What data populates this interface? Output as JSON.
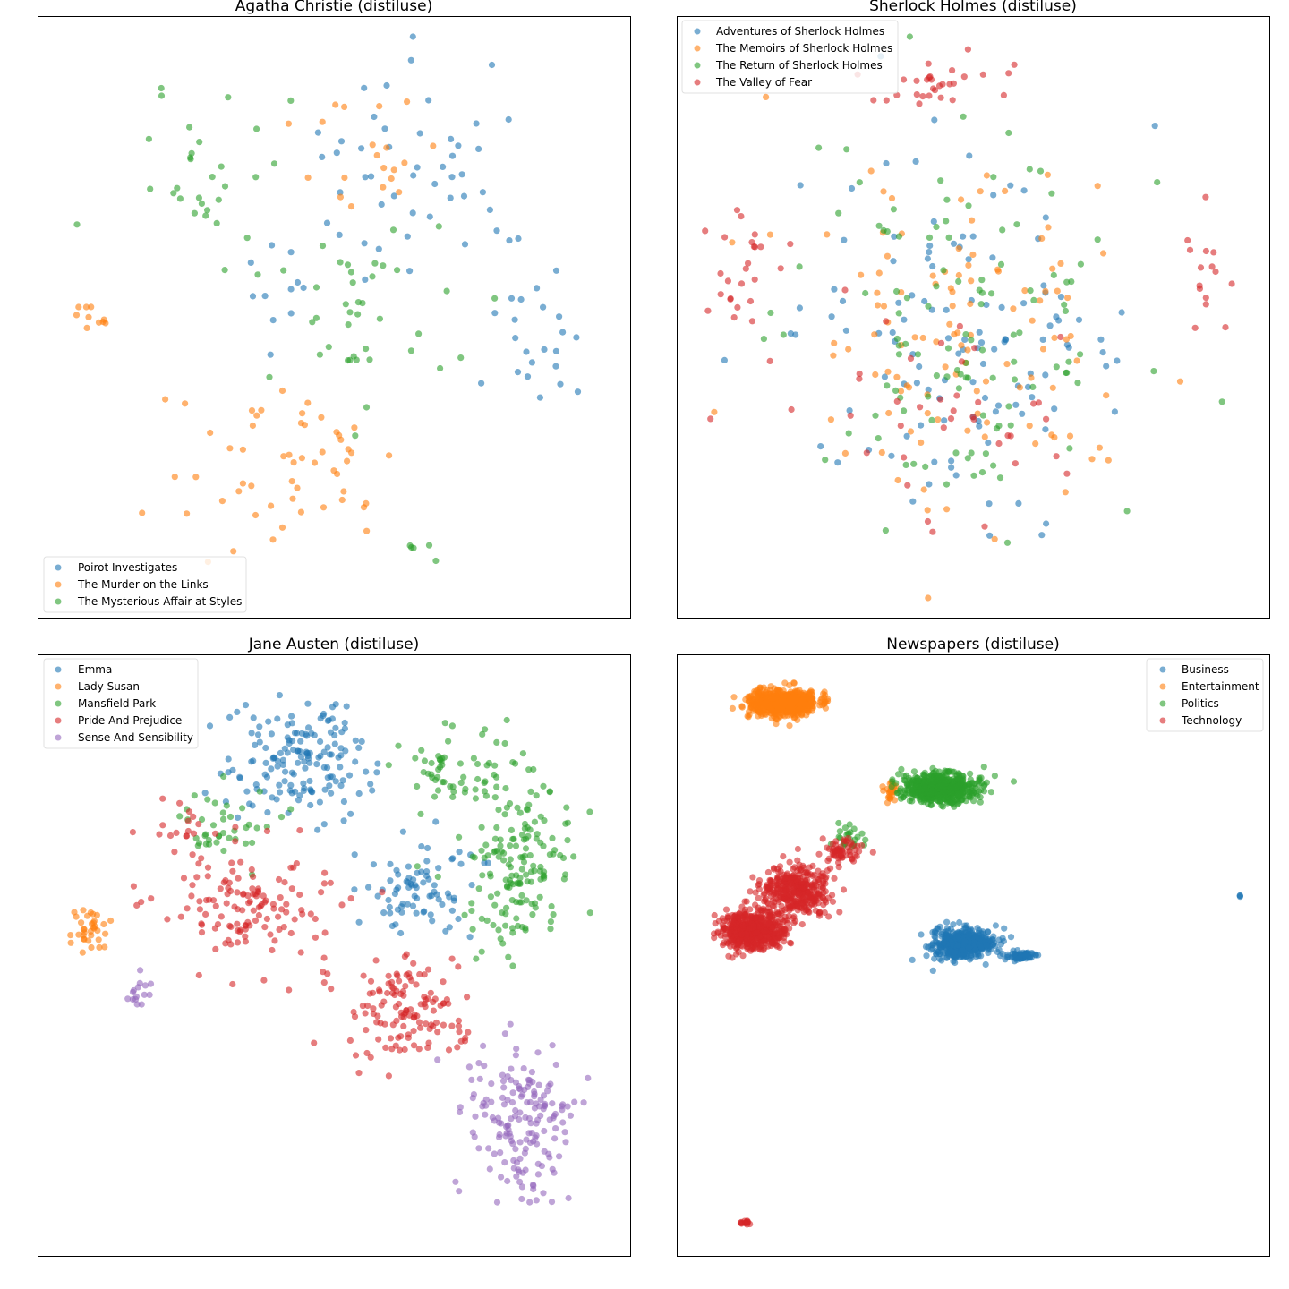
{
  "figure": {
    "embedding": "distiluse",
    "colors": {
      "blue": "#1f77b4",
      "orange": "#ff7f0e",
      "green": "#2ca02c",
      "red": "#d62728",
      "purple": "#9467bd"
    }
  },
  "chart_data": [
    {
      "type": "scatter",
      "title": "Agatha Christie (distiluse)",
      "xlabel": "",
      "ylabel": "",
      "axes_ticks": false,
      "grid": false,
      "legend_position": "lower-left",
      "series": [
        {
          "name": "Poirot Investigates",
          "color": "#1f77b4",
          "alpha": 0.6,
          "clusters": [
            {
              "x": 480,
              "y": 180,
              "sx": 110,
              "sy": 110,
              "n": 45
            },
            {
              "x": 600,
              "y": 380,
              "sx": 55,
              "sy": 70,
              "n": 22
            },
            {
              "x": 330,
              "y": 300,
              "sx": 80,
              "sy": 70,
              "n": 15
            }
          ]
        },
        {
          "name": "The Murder on the Links",
          "color": "#ff7f0e",
          "alpha": 0.6,
          "clusters": [
            {
              "x": 310,
              "y": 520,
              "sx": 120,
              "sy": 90,
              "n": 55
            },
            {
              "x": 100,
              "y": 355,
              "sx": 25,
              "sy": 20,
              "n": 10
            },
            {
              "x": 430,
              "y": 180,
              "sx": 90,
              "sy": 90,
              "n": 20
            }
          ]
        },
        {
          "name": "The Mysterious Affair at Styles",
          "color": "#2ca02c",
          "alpha": 0.6,
          "clusters": [
            {
              "x": 220,
              "y": 200,
              "sx": 70,
              "sy": 80,
              "n": 30
            },
            {
              "x": 400,
              "y": 350,
              "sx": 100,
              "sy": 110,
              "n": 40
            },
            {
              "x": 470,
              "y": 615,
              "sx": 15,
              "sy": 12,
              "n": 5
            }
          ]
        }
      ]
    },
    {
      "type": "scatter",
      "title": "Sherlock Holmes (distiluse)",
      "xlabel": "",
      "ylabel": "",
      "axes_ticks": false,
      "grid": false,
      "legend_position": "upper-left",
      "series": [
        {
          "name": "Adventures of Sherlock Holmes",
          "color": "#1f77b4",
          "alpha": 0.6,
          "clusters": [
            {
              "x": 1080,
              "y": 380,
              "sx": 170,
              "sy": 170,
              "n": 120
            }
          ]
        },
        {
          "name": "The Memoirs of Sherlock Holmes",
          "color": "#ff7f0e",
          "alpha": 0.6,
          "clusters": [
            {
              "x": 1080,
              "y": 360,
              "sx": 180,
              "sy": 180,
              "n": 115
            }
          ]
        },
        {
          "name": "The Return of Sherlock Holmes",
          "color": "#2ca02c",
          "alpha": 0.6,
          "clusters": [
            {
              "x": 1070,
              "y": 370,
              "sx": 170,
              "sy": 180,
              "n": 115
            }
          ]
        },
        {
          "name": "The Valley of Fear",
          "color": "#d62728",
          "alpha": 0.6,
          "clusters": [
            {
              "x": 1050,
              "y": 90,
              "sx": 80,
              "sy": 35,
              "n": 30
            },
            {
              "x": 830,
              "y": 300,
              "sx": 45,
              "sy": 80,
              "n": 25
            },
            {
              "x": 1350,
              "y": 330,
              "sx": 30,
              "sy": 70,
              "n": 15
            },
            {
              "x": 1050,
              "y": 450,
              "sx": 160,
              "sy": 140,
              "n": 40
            }
          ]
        }
      ]
    },
    {
      "type": "scatter",
      "title": "Jane Austen (distiluse)",
      "xlabel": "",
      "ylabel": "",
      "axes_ticks": false,
      "grid": false,
      "legend_position": "upper-left",
      "series": [
        {
          "name": "Emma",
          "color": "#1f77b4",
          "alpha": 0.6,
          "clusters": [
            {
              "x": 330,
              "y": 850,
              "sx": 70,
              "sy": 60,
              "n": 160
            },
            {
              "x": 470,
              "y": 990,
              "sx": 60,
              "sy": 50,
              "n": 80
            }
          ]
        },
        {
          "name": "Lady Susan",
          "color": "#ff7f0e",
          "alpha": 0.6,
          "clusters": [
            {
              "x": 100,
              "y": 1040,
              "sx": 20,
              "sy": 20,
              "n": 35
            }
          ]
        },
        {
          "name": "Mansfield Park",
          "color": "#2ca02c",
          "alpha": 0.6,
          "clusters": [
            {
              "x": 580,
              "y": 960,
              "sx": 55,
              "sy": 90,
              "n": 170
            },
            {
              "x": 500,
              "y": 860,
              "sx": 50,
              "sy": 40,
              "n": 50
            },
            {
              "x": 250,
              "y": 920,
              "sx": 50,
              "sy": 40,
              "n": 40
            }
          ]
        },
        {
          "name": "Pride And Prejudice",
          "color": "#d62728",
          "alpha": 0.6,
          "clusters": [
            {
              "x": 280,
              "y": 1010,
              "sx": 90,
              "sy": 60,
              "n": 130
            },
            {
              "x": 450,
              "y": 1130,
              "sx": 60,
              "sy": 50,
              "n": 130
            },
            {
              "x": 200,
              "y": 930,
              "sx": 40,
              "sy": 40,
              "n": 20
            }
          ]
        },
        {
          "name": "Sense And Sensibility",
          "color": "#9467bd",
          "alpha": 0.6,
          "clusters": [
            {
              "x": 580,
              "y": 1250,
              "sx": 50,
              "sy": 80,
              "n": 170
            },
            {
              "x": 160,
              "y": 1110,
              "sx": 12,
              "sy": 20,
              "n": 15
            }
          ]
        }
      ]
    },
    {
      "type": "scatter",
      "title": "Newspapers (distiluse)",
      "xlabel": "",
      "ylabel": "",
      "axes_ticks": false,
      "grid": false,
      "legend_position": "upper-right",
      "series": [
        {
          "name": "Business",
          "color": "#1f77b4",
          "alpha": 0.6,
          "clusters": [
            {
              "x": 1075,
              "y": 1055,
              "sx": 30,
              "sy": 15,
              "n": 500
            },
            {
              "x": 1140,
              "y": 1068,
              "sx": 18,
              "sy": 5,
              "n": 60
            },
            {
              "x": 1385,
              "y": 1001,
              "sx": 1,
              "sy": 1,
              "n": 3
            }
          ]
        },
        {
          "name": "Entertainment",
          "color": "#ff7f0e",
          "alpha": 0.6,
          "clusters": [
            {
              "x": 875,
              "y": 785,
              "sx": 35,
              "sy": 13,
              "n": 700
            },
            {
              "x": 995,
              "y": 885,
              "sx": 6,
              "sy": 10,
              "n": 30
            }
          ]
        },
        {
          "name": "Politics",
          "color": "#2ca02c",
          "alpha": 0.6,
          "clusters": [
            {
              "x": 1050,
              "y": 880,
              "sx": 35,
              "sy": 14,
              "n": 700
            },
            {
              "x": 950,
              "y": 935,
              "sx": 18,
              "sy": 12,
              "n": 25
            }
          ]
        },
        {
          "name": "Technology",
          "color": "#d62728",
          "alpha": 0.6,
          "clusters": [
            {
              "x": 840,
              "y": 1040,
              "sx": 32,
              "sy": 18,
              "n": 600
            },
            {
              "x": 890,
              "y": 995,
              "sx": 35,
              "sy": 25,
              "n": 400
            },
            {
              "x": 940,
              "y": 950,
              "sx": 18,
              "sy": 12,
              "n": 60
            },
            {
              "x": 833,
              "y": 1366,
              "sx": 8,
              "sy": 2,
              "n": 14
            }
          ]
        }
      ]
    }
  ]
}
